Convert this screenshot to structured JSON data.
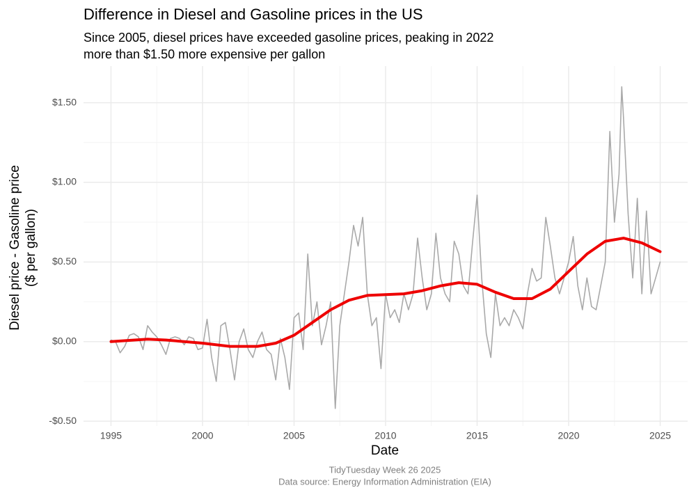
{
  "chart_data": {
    "type": "line",
    "title": "Difference in Diesel and Gasoline prices in the US",
    "subtitle": [
      "Since 2005, diesel prices have exceeded gasoline prices, peaking in 2022",
      "more than $1.50 more expensive per gallon"
    ],
    "x_label": "Date",
    "y_label": [
      "Diesel price - Gasoline price",
      "($ per gallon)"
    ],
    "caption": [
      "TidyTuesday Week 26 2025",
      "Data source: Energy Information Administration (EIA)"
    ],
    "xlim": [
      1993.5,
      2026.5
    ],
    "xticks": [
      1995,
      2000,
      2005,
      2010,
      2015,
      2020,
      2025
    ],
    "xminor": [
      1997.5,
      2002.5,
      2007.5,
      2012.5,
      2017.5,
      2022.5
    ],
    "ylim": [
      -0.53,
      1.73
    ],
    "yticks": [
      {
        "value": -0.5,
        "label": "-$0.50"
      },
      {
        "value": 0,
        "label": "$0.00"
      },
      {
        "value": 0.5,
        "label": "$0.50"
      },
      {
        "value": 1,
        "label": "$1.00"
      },
      {
        "value": 1.5,
        "label": "$1.50"
      }
    ],
    "yminor": [
      -0.25,
      0.25,
      0.75,
      1.25
    ],
    "grid": true,
    "series": [
      {
        "color": "#a9a9a9",
        "width": 1.6,
        "x": [
          1995,
          1995.25,
          1995.5,
          1995.75,
          1996,
          1996.25,
          1996.5,
          1996.75,
          1997,
          1997.25,
          1997.5,
          1997.75,
          1998,
          1998.25,
          1998.5,
          1998.75,
          1999,
          1999.25,
          1999.5,
          1999.75,
          2000,
          2000.25,
          2000.5,
          2000.75,
          2001,
          2001.25,
          2001.5,
          2001.75,
          2002,
          2002.25,
          2002.5,
          2002.75,
          2003,
          2003.25,
          2003.5,
          2003.75,
          2004,
          2004.25,
          2004.5,
          2004.75,
          2005,
          2005.25,
          2005.5,
          2005.75,
          2006,
          2006.25,
          2006.5,
          2006.75,
          2007,
          2007.25,
          2007.5,
          2007.75,
          2008,
          2008.25,
          2008.5,
          2008.75,
          2009,
          2009.25,
          2009.5,
          2009.75,
          2010,
          2010.25,
          2010.5,
          2010.75,
          2011,
          2011.25,
          2011.5,
          2011.75,
          2012,
          2012.25,
          2012.5,
          2012.75,
          2013,
          2013.25,
          2013.5,
          2013.75,
          2014,
          2014.25,
          2014.5,
          2014.75,
          2015,
          2015.25,
          2015.5,
          2015.75,
          2016,
          2016.25,
          2016.5,
          2016.75,
          2017,
          2017.25,
          2017.5,
          2017.75,
          2018,
          2018.25,
          2018.5,
          2018.75,
          2019,
          2019.25,
          2019.5,
          2019.75,
          2020,
          2020.25,
          2020.5,
          2020.75,
          2021,
          2021.25,
          2021.5,
          2021.75,
          2022,
          2022.25,
          2022.5,
          2022.75,
          2022.9,
          2023,
          2023.25,
          2023.5,
          2023.75,
          2024,
          2024.25,
          2024.5,
          2024.75,
          2025
        ],
        "values": [
          0.01,
          0,
          -0.07,
          -0.03,
          0.04,
          0.05,
          0.03,
          -0.05,
          0.1,
          0.06,
          0.03,
          -0.02,
          -0.08,
          0.02,
          0.03,
          0.02,
          -0.02,
          0.03,
          0.02,
          -0.05,
          -0.04,
          0.14,
          -0.1,
          -0.25,
          0.1,
          0.12,
          -0.05,
          -0.24,
          0,
          0.08,
          -0.05,
          -0.1,
          0,
          0.06,
          -0.05,
          -0.08,
          -0.24,
          0.02,
          -0.1,
          -0.3,
          0.15,
          0.18,
          -0.05,
          0.55,
          0.1,
          0.25,
          -0.02,
          0.1,
          0.25,
          -0.42,
          0.1,
          0.3,
          0.5,
          0.73,
          0.6,
          0.78,
          0.3,
          0.1,
          0.15,
          -0.17,
          0.3,
          0.15,
          0.2,
          0.12,
          0.3,
          0.2,
          0.3,
          0.65,
          0.4,
          0.2,
          0.3,
          0.68,
          0.4,
          0.3,
          0.25,
          0.63,
          0.55,
          0.35,
          0.3,
          0.62,
          0.92,
          0.4,
          0.05,
          -0.1,
          0.3,
          0.1,
          0.15,
          0.1,
          0.2,
          0.15,
          0.08,
          0.3,
          0.46,
          0.38,
          0.4,
          0.78,
          0.6,
          0.4,
          0.3,
          0.4,
          0.5,
          0.66,
          0.35,
          0.2,
          0.4,
          0.22,
          0.2,
          0.35,
          0.5,
          1.32,
          0.75,
          1.05,
          1.6,
          1.4,
          0.8,
          0.4,
          0.9,
          0.3,
          0.82,
          0.3,
          0.4,
          0.5
        ]
      },
      {
        "color": "#ee0000",
        "width": 4,
        "x": [
          1995,
          1997,
          1998,
          2000,
          2001.5,
          2003,
          2004,
          2005,
          2006,
          2007,
          2008,
          2009,
          2010,
          2011,
          2012,
          2013,
          2014,
          2015,
          2016,
          2017,
          2018,
          2019,
          2020,
          2021,
          2022,
          2023,
          2024,
          2025
        ],
        "values": [
          0,
          0.015,
          0.01,
          -0.01,
          -0.03,
          -0.03,
          -0.01,
          0.04,
          0.12,
          0.2,
          0.26,
          0.29,
          0.295,
          0.3,
          0.32,
          0.35,
          0.37,
          0.36,
          0.31,
          0.27,
          0.27,
          0.33,
          0.44,
          0.55,
          0.63,
          0.65,
          0.62,
          0.565
        ]
      }
    ]
  }
}
